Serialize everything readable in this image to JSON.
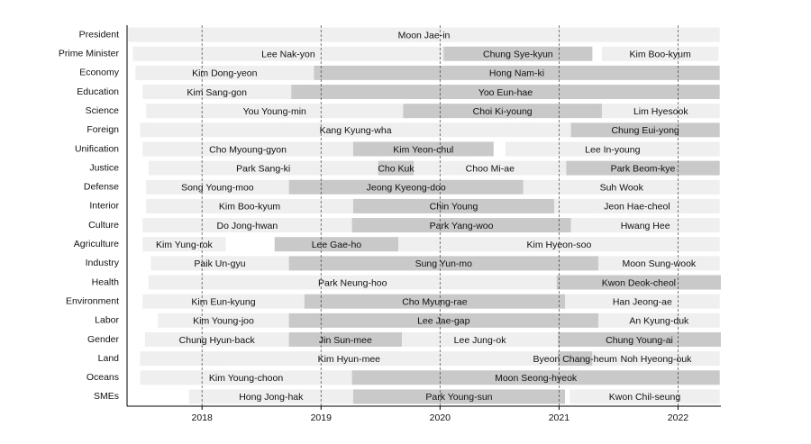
{
  "chart_data": {
    "type": "gantt",
    "xlim": [
      2017.37,
      2022.36
    ],
    "xticks": [
      2018,
      2019,
      2020,
      2021,
      2022
    ],
    "colors": [
      "#efefef",
      "#c9c9c9"
    ],
    "grid": true,
    "rows": [
      {
        "name": "President",
        "bars": [
          {
            "label": "Moon Jae-in",
            "start": 2017.38,
            "end": 2022.35
          }
        ]
      },
      {
        "name": "Prime Minister",
        "bars": [
          {
            "label": "Lee Nak-yon",
            "start": 2017.42,
            "end": 2020.03
          },
          {
            "label": "Chung Sye-kyun",
            "start": 2020.03,
            "end": 2021.28
          },
          {
            "label": "Kim Boo-kyum",
            "start": 2021.36,
            "end": 2022.34
          }
        ]
      },
      {
        "name": "Economy",
        "bars": [
          {
            "label": "Kim Dong-yeon",
            "start": 2017.44,
            "end": 2018.94
          },
          {
            "label": "Hong Nam-ki",
            "start": 2018.94,
            "end": 2022.35
          }
        ]
      },
      {
        "name": "Education",
        "bars": [
          {
            "label": "Kim Sang-gon",
            "start": 2017.5,
            "end": 2018.75
          },
          {
            "label": "Yoo Eun-hae",
            "start": 2018.75,
            "end": 2022.35
          }
        ]
      },
      {
        "name": "Science",
        "bars": [
          {
            "label": "You Young-min",
            "start": 2017.53,
            "end": 2019.69
          },
          {
            "label": "Choi Ki-young",
            "start": 2019.69,
            "end": 2021.36
          },
          {
            "label": "Lim Hyesook",
            "start": 2021.36,
            "end": 2022.35
          }
        ]
      },
      {
        "name": "Foreign",
        "bars": [
          {
            "label": "Kang Kyung-wha",
            "start": 2017.48,
            "end": 2021.1
          },
          {
            "label": "Chung Eui-yong",
            "start": 2021.1,
            "end": 2022.35
          }
        ]
      },
      {
        "name": "Unification",
        "bars": [
          {
            "label": "Cho Myoung-gyon",
            "start": 2017.5,
            "end": 2019.27
          },
          {
            "label": "Kim Yeon-chul",
            "start": 2019.27,
            "end": 2020.45
          },
          {
            "label": "Lee In-young",
            "start": 2020.55,
            "end": 2022.35
          }
        ]
      },
      {
        "name": "Justice",
        "bars": [
          {
            "label": "Park Sang-ki",
            "start": 2017.55,
            "end": 2019.48
          },
          {
            "label": "Cho Kuk",
            "start": 2019.48,
            "end": 2019.78
          },
          {
            "label": "Choo Mi-ae",
            "start": 2019.78,
            "end": 2021.06
          },
          {
            "label": "Park Beom-kye",
            "start": 2021.06,
            "end": 2022.35
          }
        ]
      },
      {
        "name": "Defense",
        "bars": [
          {
            "label": "Song Young-moo",
            "start": 2017.53,
            "end": 2018.73
          },
          {
            "label": "Jeong Kyeong-doo",
            "start": 2018.73,
            "end": 2020.7
          },
          {
            "label": "Suh Wook",
            "start": 2020.7,
            "end": 2022.35
          }
        ]
      },
      {
        "name": "Interior",
        "bars": [
          {
            "label": "Kim Boo-kyum",
            "start": 2017.53,
            "end": 2019.27
          },
          {
            "label": "Chin Young",
            "start": 2019.27,
            "end": 2020.96
          },
          {
            "label": "Jeon Hae-cheol",
            "start": 2020.96,
            "end": 2022.35
          }
        ]
      },
      {
        "name": "Culture",
        "bars": [
          {
            "label": "Do Jong-hwan",
            "start": 2017.5,
            "end": 2019.26
          },
          {
            "label": "Park Yang-woo",
            "start": 2019.26,
            "end": 2021.1
          },
          {
            "label": "Hwang Hee",
            "start": 2021.1,
            "end": 2022.35
          }
        ]
      },
      {
        "name": "Agriculture",
        "bars": [
          {
            "label": "Kim Yung-rok",
            "start": 2017.5,
            "end": 2018.2
          },
          {
            "label": "Lee Gae-ho",
            "start": 2018.61,
            "end": 2019.65
          },
          {
            "label": "Kim Hyeon-soo",
            "start": 2019.65,
            "end": 2022.35
          }
        ]
      },
      {
        "name": "Industry",
        "bars": [
          {
            "label": "Paik Un-gyu",
            "start": 2017.57,
            "end": 2018.73
          },
          {
            "label": "Sung Yun-mo",
            "start": 2018.73,
            "end": 2021.33
          },
          {
            "label": "Moon Sung-wook",
            "start": 2021.33,
            "end": 2022.35
          }
        ]
      },
      {
        "name": "Health",
        "bars": [
          {
            "label": "Park Neung-hoo",
            "start": 2017.55,
            "end": 2020.98
          },
          {
            "label": "Kwon Deok-cheol",
            "start": 2020.98,
            "end": 2022.36
          }
        ]
      },
      {
        "name": "Environment",
        "bars": [
          {
            "label": "Kim Eun-kyung",
            "start": 2017.5,
            "end": 2018.86
          },
          {
            "label": "Cho Myung-rae",
            "start": 2018.86,
            "end": 2021.05
          },
          {
            "label": "Han Jeong-ae",
            "start": 2021.05,
            "end": 2022.35
          }
        ]
      },
      {
        "name": "Labor",
        "bars": [
          {
            "label": "Kim Young-joo",
            "start": 2017.63,
            "end": 2018.73
          },
          {
            "label": "Lee Jae-gap",
            "start": 2018.73,
            "end": 2021.33
          },
          {
            "label": "An Kyung-duk",
            "start": 2021.33,
            "end": 2022.35
          }
        ]
      },
      {
        "name": "Gender",
        "bars": [
          {
            "label": "Chung Hyun-back",
            "start": 2017.52,
            "end": 2018.73
          },
          {
            "label": "Jin Sun-mee",
            "start": 2018.73,
            "end": 2019.68
          },
          {
            "label": "Lee Jung-ok",
            "start": 2019.68,
            "end": 2020.99
          },
          {
            "label": "Chung Young-ai",
            "start": 2020.99,
            "end": 2022.36
          }
        ]
      },
      {
        "name": "Land",
        "bars": [
          {
            "label": "Kim Hyun-mee",
            "start": 2017.48,
            "end": 2020.99
          },
          {
            "label": "Byeon Chang-heum",
            "start": 2020.99,
            "end": 2021.28
          },
          {
            "label": "Noh Hyeong-ouk",
            "start": 2021.28,
            "end": 2022.35
          }
        ]
      },
      {
        "name": "Oceans",
        "bars": [
          {
            "label": "Kim Young-choon",
            "start": 2017.48,
            "end": 2019.26
          },
          {
            "label": "Moon Seong-hyeok",
            "start": 2019.26,
            "end": 2022.35
          }
        ]
      },
      {
        "name": "SMEs",
        "bars": [
          {
            "label": "Hong Jong-hak",
            "start": 2017.89,
            "end": 2019.27
          },
          {
            "label": "Park Young-sun",
            "start": 2019.27,
            "end": 2021.05
          },
          {
            "label": "Kwon Chil-seung",
            "start": 2021.09,
            "end": 2022.35
          }
        ]
      }
    ]
  }
}
